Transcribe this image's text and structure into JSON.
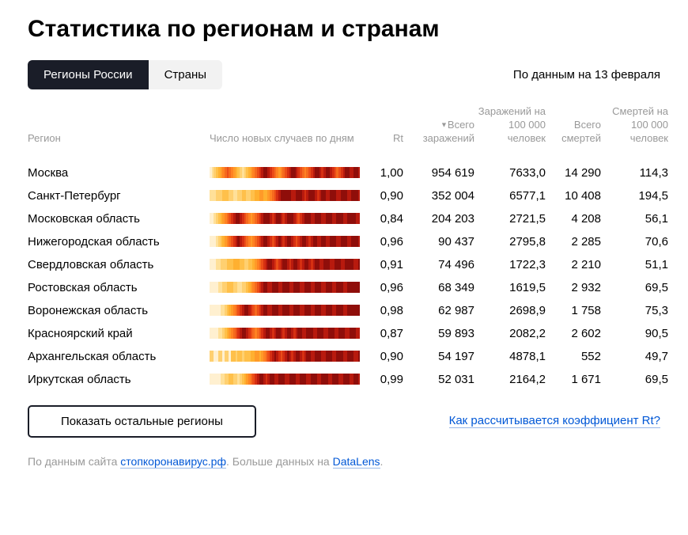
{
  "title": "Статистика по регионам и странам",
  "tabs": {
    "regions": "Регионы России",
    "countries": "Страны"
  },
  "date_info": "По данным на 13 февраля",
  "columns": {
    "region": "Регион",
    "cases_chart": "Число новых случаев по дням",
    "rt": "Rt",
    "total_infected": "Всего заражений",
    "infected_per_100k": "Заражений на 100 000 человек",
    "total_deaths": "Всего смертей",
    "deaths_per_100k": "Смертей на 100 000 человек"
  },
  "heat_palette": [
    "#fff0d0",
    "#ffe099",
    "#ffd070",
    "#ffc04a",
    "#ffb030",
    "#ff9a28",
    "#ff8222",
    "#f56a1e",
    "#eb4d18",
    "#d63012",
    "#b81a0e",
    "#8f0e0a"
  ],
  "rows": [
    {
      "region": "Москва",
      "rt": "1,00",
      "total": "954 619",
      "per100k": "7633,0",
      "deaths": "14 290",
      "dper100k": "114,3",
      "heat": [
        0,
        1,
        2,
        3,
        4,
        5,
        6,
        7,
        8,
        7,
        6,
        5,
        4,
        3,
        2,
        1,
        2,
        3,
        4,
        5,
        6,
        7,
        8,
        9,
        10,
        11,
        11,
        10,
        9,
        8,
        7,
        6,
        5,
        6,
        7,
        8,
        9,
        10,
        11,
        11,
        10,
        9,
        8,
        7,
        6,
        7,
        8,
        9,
        10,
        11,
        11,
        10,
        9,
        10,
        11,
        11,
        10,
        9,
        8,
        7,
        8,
        9,
        10,
        11,
        11,
        10,
        10,
        11,
        11,
        10
      ]
    },
    {
      "region": "Санкт-Петербург",
      "rt": "0,90",
      "total": "352 004",
      "per100k": "6577,1",
      "deaths": "10 408",
      "dper100k": "194,5",
      "heat": [
        1,
        1,
        1,
        2,
        2,
        2,
        3,
        3,
        3,
        2,
        2,
        1,
        1,
        2,
        2,
        3,
        3,
        2,
        2,
        3,
        3,
        4,
        4,
        5,
        5,
        4,
        4,
        5,
        6,
        7,
        8,
        9,
        10,
        11,
        11,
        11,
        11,
        11,
        10,
        10,
        11,
        11,
        11,
        10,
        9,
        10,
        11,
        11,
        11,
        10,
        9,
        10,
        11,
        11,
        10,
        10,
        11,
        11,
        11,
        10,
        10,
        11,
        11,
        11,
        10,
        10,
        11,
        11,
        11,
        10
      ]
    },
    {
      "region": "Московская область",
      "rt": "0,84",
      "total": "204 203",
      "per100k": "2721,5",
      "deaths": "4 208",
      "dper100k": "56,1",
      "heat": [
        0,
        0,
        1,
        2,
        3,
        4,
        5,
        6,
        7,
        8,
        9,
        10,
        11,
        11,
        10,
        9,
        8,
        7,
        6,
        5,
        6,
        7,
        8,
        9,
        10,
        11,
        11,
        11,
        10,
        9,
        10,
        11,
        11,
        10,
        9,
        10,
        11,
        11,
        11,
        10,
        9,
        8,
        9,
        10,
        11,
        11,
        11,
        10,
        10,
        11,
        11,
        11,
        10,
        10,
        11,
        11,
        11,
        10,
        10,
        11,
        11,
        11,
        10,
        10,
        11,
        11,
        11,
        11,
        10,
        10
      ]
    },
    {
      "region": "Нижегородская область",
      "rt": "0,96",
      "total": "90 437",
      "per100k": "2795,8",
      "deaths": "2 285",
      "dper100k": "70,6",
      "heat": [
        0,
        0,
        0,
        1,
        2,
        3,
        4,
        5,
        6,
        7,
        8,
        9,
        10,
        11,
        10,
        9,
        8,
        7,
        6,
        5,
        6,
        7,
        8,
        9,
        10,
        11,
        11,
        10,
        9,
        8,
        9,
        10,
        11,
        10,
        9,
        10,
        11,
        11,
        10,
        9,
        8,
        9,
        10,
        11,
        11,
        10,
        9,
        10,
        11,
        11,
        10,
        10,
        11,
        11,
        10,
        10,
        11,
        11,
        11,
        10,
        10,
        11,
        11,
        11,
        10,
        10,
        11,
        11,
        11,
        10
      ]
    },
    {
      "region": "Свердловская область",
      "rt": "0,91",
      "total": "74 496",
      "per100k": "1722,3",
      "deaths": "2 210",
      "dper100k": "51,1",
      "heat": [
        0,
        0,
        0,
        1,
        1,
        2,
        2,
        2,
        3,
        3,
        3,
        4,
        4,
        4,
        3,
        3,
        2,
        2,
        3,
        3,
        4,
        5,
        6,
        7,
        8,
        9,
        10,
        11,
        11,
        10,
        9,
        8,
        9,
        10,
        11,
        11,
        10,
        9,
        10,
        11,
        11,
        10,
        9,
        10,
        11,
        11,
        10,
        9,
        10,
        11,
        11,
        10,
        10,
        11,
        11,
        11,
        10,
        10,
        11,
        11,
        11,
        10,
        10,
        11,
        11,
        11,
        11,
        10,
        10,
        11
      ]
    },
    {
      "region": "Ростовская область",
      "rt": "0,96",
      "total": "68 349",
      "per100k": "1619,5",
      "deaths": "2 932",
      "dper100k": "69,5",
      "heat": [
        0,
        0,
        0,
        0,
        1,
        1,
        2,
        2,
        3,
        3,
        3,
        2,
        2,
        1,
        1,
        2,
        2,
        3,
        4,
        5,
        6,
        7,
        8,
        9,
        10,
        11,
        11,
        10,
        10,
        11,
        11,
        11,
        10,
        10,
        11,
        11,
        11,
        10,
        10,
        11,
        11,
        11,
        10,
        10,
        11,
        11,
        11,
        10,
        10,
        11,
        11,
        11,
        10,
        10,
        11,
        11,
        11,
        10,
        10,
        11,
        11,
        11,
        10,
        10,
        11,
        11,
        11,
        11,
        11,
        11
      ]
    },
    {
      "region": "Воронежская область",
      "rt": "0,98",
      "total": "62 987",
      "per100k": "2698,9",
      "deaths": "1 758",
      "dper100k": "75,3",
      "heat": [
        0,
        0,
        0,
        0,
        0,
        1,
        1,
        2,
        3,
        4,
        5,
        6,
        7,
        8,
        9,
        10,
        11,
        11,
        10,
        9,
        8,
        7,
        8,
        9,
        10,
        11,
        11,
        10,
        10,
        11,
        11,
        11,
        10,
        10,
        11,
        11,
        11,
        10,
        10,
        11,
        11,
        11,
        10,
        10,
        11,
        11,
        11,
        10,
        10,
        11,
        11,
        11,
        10,
        10,
        11,
        11,
        11,
        10,
        10,
        11,
        11,
        11,
        10,
        10,
        11,
        11,
        11,
        11,
        11,
        11
      ]
    },
    {
      "region": "Красноярский край",
      "rt": "0,87",
      "total": "59 893",
      "per100k": "2082,2",
      "deaths": "2 602",
      "dper100k": "90,5",
      "heat": [
        0,
        0,
        0,
        0,
        1,
        1,
        2,
        3,
        4,
        5,
        6,
        7,
        8,
        9,
        10,
        11,
        11,
        10,
        9,
        8,
        7,
        6,
        7,
        8,
        9,
        10,
        11,
        11,
        10,
        9,
        10,
        11,
        11,
        10,
        9,
        10,
        11,
        11,
        10,
        9,
        10,
        11,
        11,
        10,
        10,
        11,
        11,
        11,
        10,
        10,
        11,
        11,
        11,
        10,
        10,
        11,
        11,
        11,
        10,
        10,
        11,
        11,
        11,
        10,
        10,
        11,
        11,
        11,
        10,
        10
      ]
    },
    {
      "region": "Архангельская область",
      "rt": "0,90",
      "total": "54 197",
      "per100k": "4878,1",
      "deaths": "552",
      "dper100k": "49,7",
      "heat": [
        2,
        2,
        0,
        0,
        2,
        2,
        0,
        2,
        2,
        0,
        3,
        3,
        2,
        3,
        3,
        2,
        3,
        3,
        3,
        4,
        4,
        5,
        5,
        4,
        5,
        6,
        7,
        8,
        9,
        10,
        11,
        10,
        9,
        8,
        9,
        10,
        11,
        10,
        9,
        10,
        11,
        11,
        10,
        9,
        10,
        11,
        11,
        10,
        10,
        11,
        11,
        11,
        10,
        10,
        11,
        11,
        11,
        10,
        10,
        11,
        11,
        11,
        10,
        10,
        11,
        11,
        11,
        10,
        10,
        11
      ]
    },
    {
      "region": "Иркутская область",
      "rt": "0,99",
      "total": "52 031",
      "per100k": "2164,2",
      "deaths": "1 671",
      "dper100k": "69,5",
      "heat": [
        0,
        0,
        0,
        0,
        0,
        1,
        1,
        2,
        2,
        3,
        3,
        2,
        2,
        1,
        2,
        3,
        4,
        5,
        6,
        7,
        8,
        9,
        10,
        11,
        11,
        10,
        9,
        10,
        11,
        11,
        10,
        10,
        11,
        11,
        11,
        10,
        10,
        11,
        11,
        11,
        10,
        10,
        11,
        11,
        11,
        10,
        10,
        11,
        11,
        11,
        10,
        10,
        11,
        11,
        11,
        10,
        10,
        11,
        11,
        11,
        10,
        10,
        11,
        11,
        11,
        10,
        10,
        11,
        11,
        10
      ]
    }
  ],
  "show_more": "Показать остальные регионы",
  "rt_link": "Как рассчитывается коэффициент Rt?",
  "source": {
    "prefix": "По данным сайта ",
    "link1": "стопкоронавирус.рф",
    "mid": ". ",
    "suffix": "Больше данных на ",
    "link2": "DataLens",
    "end": "."
  }
}
